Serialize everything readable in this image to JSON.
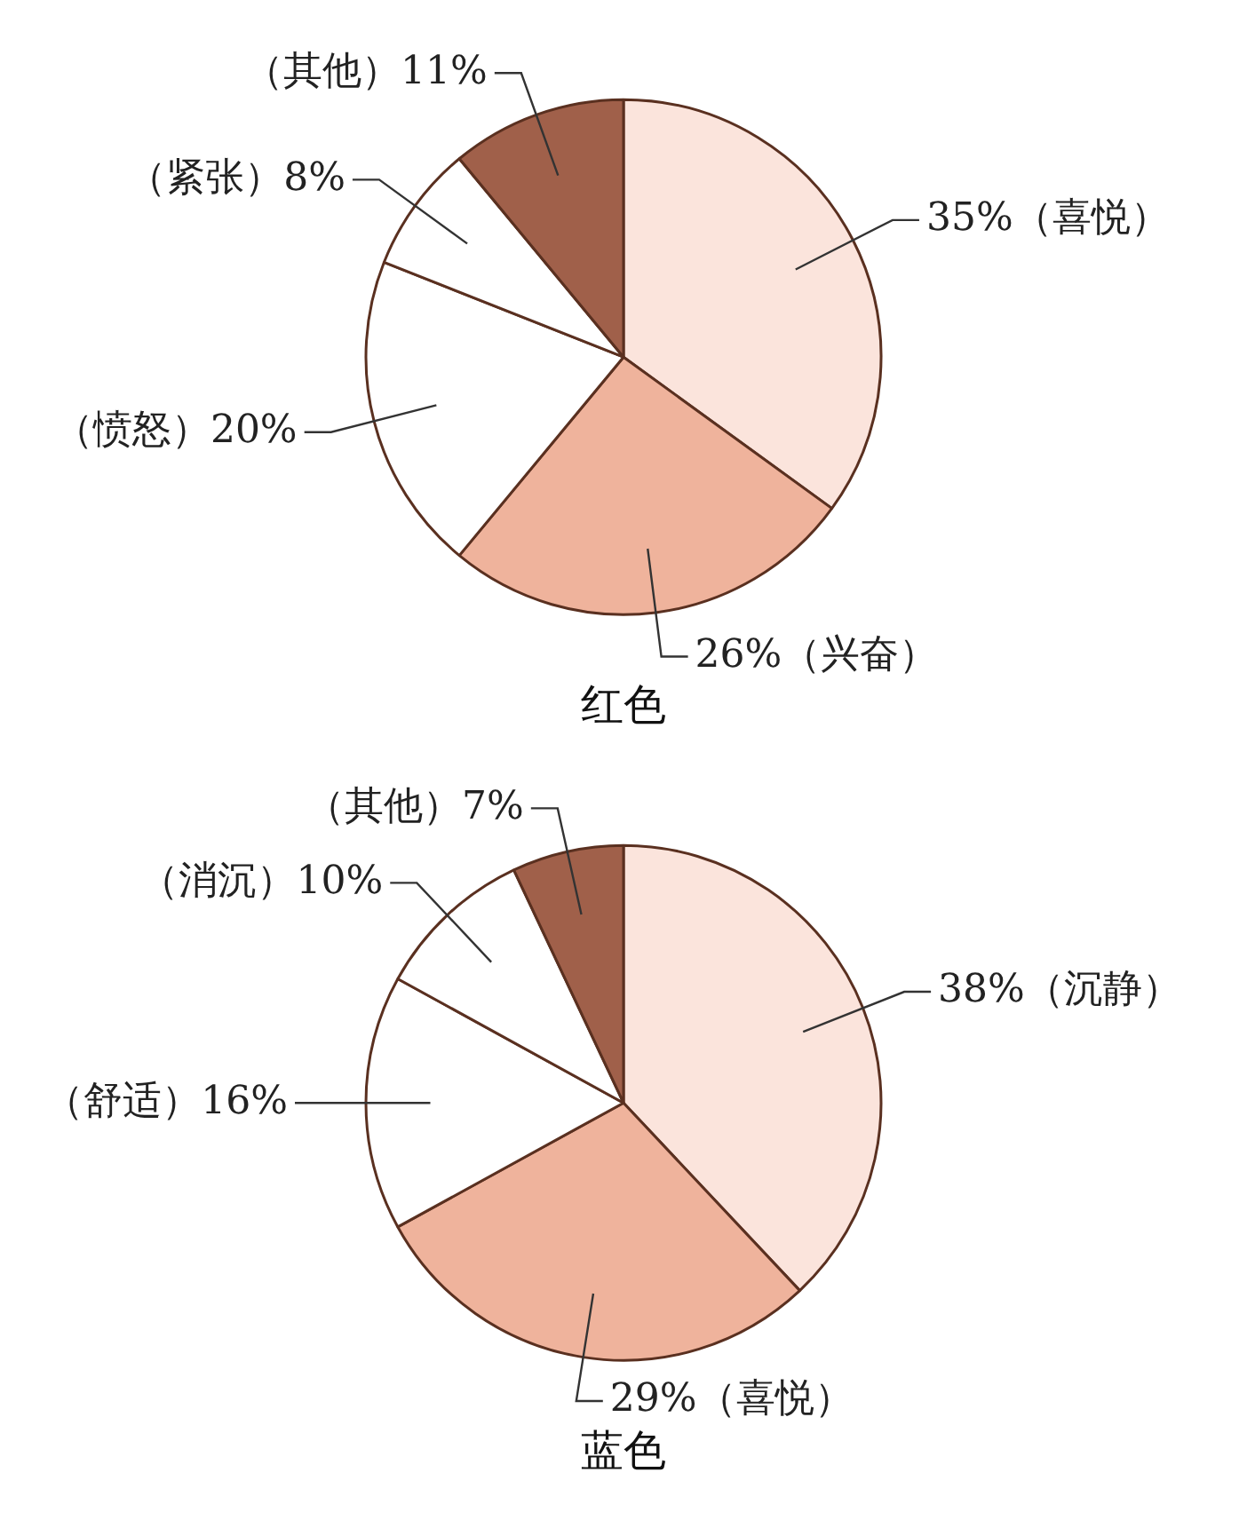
{
  "chart_data": [
    {
      "type": "pie",
      "title": "红色",
      "categories": [
        "（喜悦）",
        "（兴奋）",
        "（愤怒）",
        "（紧张）",
        "（其他）"
      ],
      "values": [
        35,
        26,
        20,
        8,
        11
      ],
      "colors": [
        "#fbe4dc",
        "#efb39c",
        "#ffffff",
        "#ffffff",
        "#a0604a"
      ],
      "value_labels": [
        "35%",
        "26%",
        "20%",
        "8%",
        "11%"
      ],
      "legend": false
    },
    {
      "type": "pie",
      "title": "蓝色",
      "categories": [
        "（沉静）",
        "（喜悦）",
        "（舒适）",
        "（消沉）",
        "（其他）"
      ],
      "values": [
        38,
        29,
        16,
        10,
        7
      ],
      "colors": [
        "#fbe4dc",
        "#efb39c",
        "#ffffff",
        "#ffffff",
        "#a0604a"
      ],
      "value_labels": [
        "38%",
        "29%",
        "16%",
        "10%",
        "7%"
      ],
      "legend": false
    }
  ]
}
